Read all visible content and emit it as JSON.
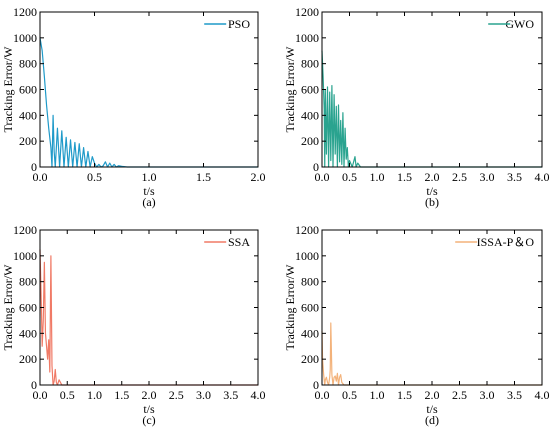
{
  "chart_data": [
    {
      "type": "line",
      "panel_label": "(a)",
      "xlabel": "t/s",
      "ylabel": "Tracking Error/W",
      "xlim": [
        0,
        2.0
      ],
      "ylim": [
        0,
        1200
      ],
      "xticks": [
        0.0,
        0.5,
        1.0,
        1.5,
        2.0
      ],
      "xtick_labels": [
        "0.0",
        "0.5",
        "1.0",
        "1.5",
        "2.0"
      ],
      "yticks": [
        0,
        200,
        400,
        600,
        800,
        1000,
        1200
      ],
      "ytick_labels": [
        "0",
        "200",
        "400",
        "600",
        "800",
        "1000",
        "1200"
      ],
      "legend_position": "top-right",
      "grid": false,
      "series": [
        {
          "name": "PSO",
          "color": "#1f9ac9",
          "x": [
            0.0,
            0.02,
            0.04,
            0.06,
            0.08,
            0.1,
            0.11,
            0.12,
            0.13,
            0.14,
            0.16,
            0.18,
            0.2,
            0.22,
            0.24,
            0.26,
            0.28,
            0.3,
            0.32,
            0.34,
            0.36,
            0.38,
            0.4,
            0.42,
            0.44,
            0.46,
            0.48,
            0.5,
            0.52,
            0.54,
            0.56,
            0.58,
            0.6,
            0.62,
            0.64,
            0.66,
            0.68,
            0.7,
            0.72,
            0.75,
            0.8,
            1.0,
            1.5,
            2.0
          ],
          "y": [
            1000,
            900,
            700,
            480,
            300,
            150,
            0,
            400,
            120,
            0,
            300,
            0,
            280,
            0,
            230,
            0,
            210,
            0,
            190,
            0,
            180,
            0,
            150,
            0,
            120,
            0,
            80,
            30,
            0,
            20,
            0,
            10,
            40,
            0,
            30,
            0,
            20,
            0,
            10,
            5,
            0,
            0,
            0,
            0
          ]
        }
      ]
    },
    {
      "type": "line",
      "panel_label": "(b)",
      "xlabel": "t/s",
      "ylabel": "Tracking Error/W",
      "xlim": [
        0,
        4.0
      ],
      "ylim": [
        0,
        1200
      ],
      "xticks": [
        0.0,
        0.5,
        1.0,
        1.5,
        2.0,
        2.5,
        3.0,
        3.5,
        4.0
      ],
      "xtick_labels": [
        "0.0",
        "0.5",
        "1.0",
        "1.5",
        "2.0",
        "2.5",
        "3.0",
        "3.5",
        "4.0"
      ],
      "yticks": [
        0,
        200,
        400,
        600,
        800,
        1000,
        1200
      ],
      "ytick_labels": [
        "0",
        "200",
        "400",
        "600",
        "800",
        "1000",
        "1200"
      ],
      "legend_position": "top-right",
      "grid": false,
      "series": [
        {
          "name": "GWO",
          "color": "#2aa38f",
          "x": [
            0.0,
            0.02,
            0.04,
            0.05,
            0.06,
            0.08,
            0.1,
            0.12,
            0.14,
            0.16,
            0.18,
            0.2,
            0.22,
            0.24,
            0.26,
            0.28,
            0.3,
            0.32,
            0.34,
            0.36,
            0.38,
            0.4,
            0.42,
            0.44,
            0.46,
            0.48,
            0.5,
            0.55,
            0.6,
            0.62,
            0.65,
            0.7,
            0.8,
            1.0,
            2.0,
            3.0,
            4.0
          ],
          "y": [
            900,
            700,
            450,
            0,
            600,
            100,
            620,
            0,
            580,
            50,
            630,
            0,
            560,
            100,
            470,
            0,
            480,
            40,
            360,
            20,
            420,
            0,
            300,
            60,
            150,
            0,
            50,
            0,
            80,
            0,
            30,
            0,
            0,
            0,
            0,
            0,
            0
          ]
        }
      ]
    },
    {
      "type": "line",
      "panel_label": "(c)",
      "xlabel": "t/s",
      "ylabel": "Tracking Error/W",
      "xlim": [
        0,
        4.0
      ],
      "ylim": [
        0,
        1200
      ],
      "xticks": [
        0.0,
        0.5,
        1.0,
        1.5,
        2.0,
        2.5,
        3.0,
        3.5,
        4.0
      ],
      "xtick_labels": [
        "0.0",
        "0.5",
        "1.0",
        "1.5",
        "2.0",
        "2.5",
        "3.0",
        "3.5",
        "4.0"
      ],
      "yticks": [
        0,
        200,
        400,
        600,
        800,
        1000,
        1200
      ],
      "ytick_labels": [
        "0",
        "200",
        "400",
        "600",
        "800",
        "1000",
        "1200"
      ],
      "legend_position": "top-right",
      "grid": false,
      "series": [
        {
          "name": "SSA",
          "color": "#f07a66",
          "x": [
            0.0,
            0.02,
            0.04,
            0.06,
            0.08,
            0.1,
            0.12,
            0.14,
            0.16,
            0.18,
            0.2,
            0.22,
            0.24,
            0.26,
            0.28,
            0.3,
            0.32,
            0.35,
            0.4,
            0.5,
            1.0,
            2.0,
            3.0,
            4.0
          ],
          "y": [
            1050,
            700,
            300,
            500,
            950,
            400,
            300,
            200,
            350,
            100,
            1000,
            150,
            0,
            30,
            120,
            20,
            0,
            40,
            0,
            0,
            0,
            0,
            0,
            0
          ]
        }
      ]
    },
    {
      "type": "line",
      "panel_label": "(d)",
      "xlabel": "t/s",
      "ylabel": "Tracking Error/W",
      "xlim": [
        0,
        4.0
      ],
      "ylim": [
        0,
        1200
      ],
      "xticks": [
        0.0,
        0.5,
        1.0,
        1.5,
        2.0,
        2.5,
        3.0,
        3.5,
        4.0
      ],
      "xtick_labels": [
        "0.0",
        "0.5",
        "1.0",
        "1.5",
        "2.0",
        "2.5",
        "3.0",
        "3.5",
        "4.0"
      ],
      "yticks": [
        0,
        200,
        400,
        600,
        800,
        1000,
        1200
      ],
      "ytick_labels": [
        "0",
        "200",
        "400",
        "600",
        "800",
        "1000",
        "1200"
      ],
      "legend_position": "top-right",
      "grid": false,
      "series": [
        {
          "name": "ISSA-P＆O",
          "color": "#f3b27a",
          "x": [
            0.0,
            0.01,
            0.03,
            0.05,
            0.06,
            0.08,
            0.1,
            0.12,
            0.14,
            0.15,
            0.16,
            0.18,
            0.2,
            0.22,
            0.24,
            0.26,
            0.28,
            0.3,
            0.32,
            0.34,
            0.36,
            0.4,
            0.5,
            1.0,
            2.0,
            3.0,
            4.0
          ],
          "y": [
            420,
            200,
            80,
            0,
            40,
            60,
            20,
            0,
            60,
            120,
            480,
            80,
            0,
            60,
            70,
            30,
            90,
            0,
            60,
            80,
            20,
            0,
            0,
            0,
            0,
            0,
            0
          ]
        }
      ]
    }
  ]
}
